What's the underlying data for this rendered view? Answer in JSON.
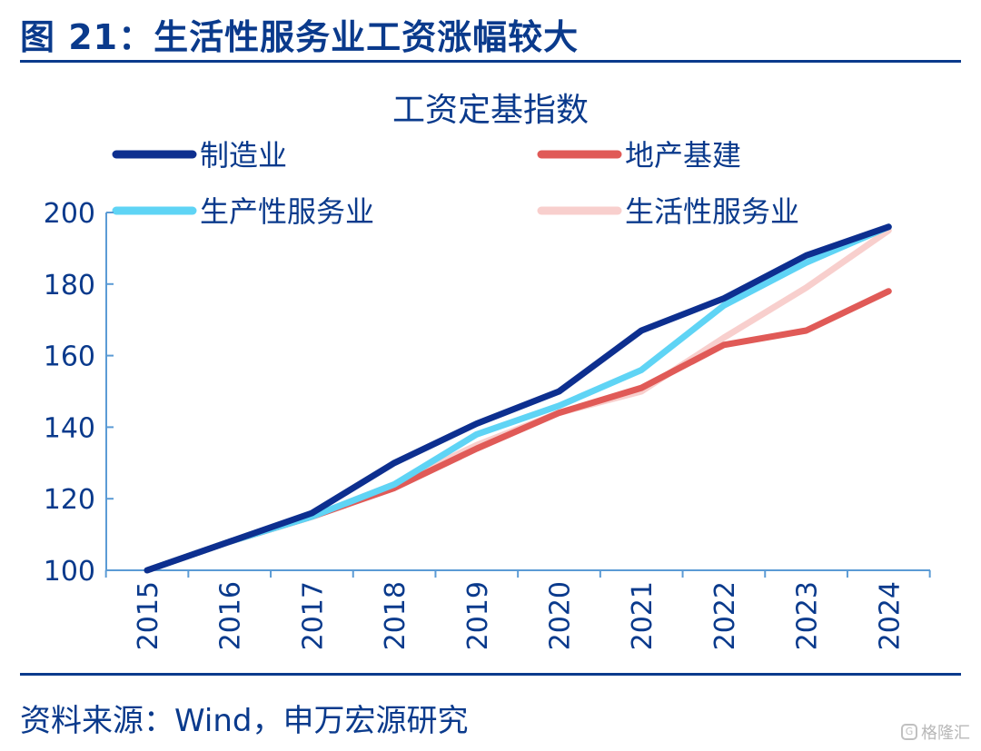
{
  "figure": {
    "title": "图 21：生活性服务业工资涨幅较大",
    "source": "资料来源：Wind，申万宏源研究",
    "watermark": "格隆汇"
  },
  "colors": {
    "accent": "#0a3a8c",
    "axis": "#5b9bd5",
    "manufacturing": "#0d2f8f",
    "real_estate": "#e05a57",
    "producer_services": "#5fd4f5",
    "consumer_services": "#f8cfcd"
  },
  "chart_data": {
    "type": "line",
    "title": "工资定基指数",
    "xlabel": "",
    "ylabel": "",
    "ylim": [
      100,
      200
    ],
    "yticks": [
      100,
      120,
      140,
      160,
      180,
      200
    ],
    "x": [
      "2015",
      "2016",
      "2017",
      "2018",
      "2019",
      "2020",
      "2021",
      "2022",
      "2023",
      "2024"
    ],
    "series": [
      {
        "name": "制造业",
        "color": "#0d2f8f",
        "values": [
          100,
          108,
          116,
          130,
          141,
          150,
          167,
          176,
          188,
          196
        ]
      },
      {
        "name": "地产基建",
        "color": "#e05a57",
        "values": [
          100,
          108,
          115,
          123,
          134,
          144,
          151,
          163,
          167,
          178
        ]
      },
      {
        "name": "生产性服务业",
        "color": "#5fd4f5",
        "values": [
          100,
          108,
          115,
          124,
          138,
          146,
          156,
          174,
          186,
          196
        ]
      },
      {
        "name": "生活性服务业",
        "color": "#f8cfcd",
        "values": [
          100,
          108,
          115,
          124,
          135,
          144,
          150,
          165,
          179,
          195
        ]
      }
    ]
  }
}
